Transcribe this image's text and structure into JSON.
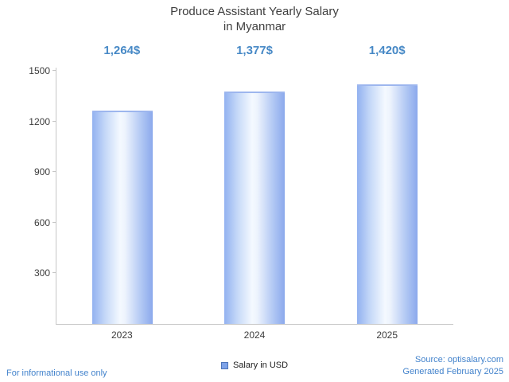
{
  "title": {
    "line1": "Produce Assistant Yearly Salary",
    "line2": "in Myanmar"
  },
  "chart_data": {
    "type": "bar",
    "title": "Produce Assistant Yearly Salary in Myanmar",
    "categories": [
      "2023",
      "2024",
      "2025"
    ],
    "values": [
      1264,
      1377,
      1420
    ],
    "value_labels": [
      "1,264$",
      "1,377$",
      "1,420$"
    ],
    "yticks": [
      300,
      600,
      900,
      1200,
      1500
    ],
    "ylim": [
      0,
      1500
    ],
    "xlabel": "",
    "ylabel": "",
    "legend": "Salary in USD",
    "legend_position": "bottom-center",
    "grid": false,
    "bar_color": "#8ba9ec",
    "accent_text_color": "#4789c6"
  },
  "legend": {
    "label": "Salary in USD"
  },
  "footer": {
    "left": "For informational use only",
    "source": "Source: optisalary.com",
    "generated": "Generated February 2025"
  }
}
